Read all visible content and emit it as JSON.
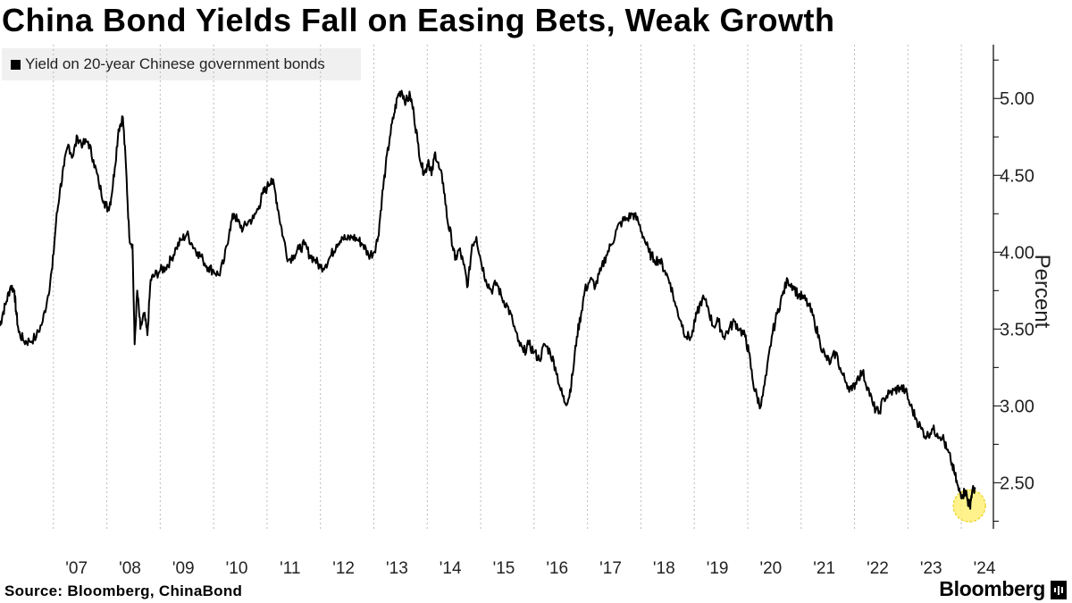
{
  "title": "China Bond Yields Fall on Easing Bets, Weak Growth",
  "legend": {
    "label": "Yield on 20-year Chinese government bonds",
    "color": "#000000"
  },
  "source": "Source: Bloomberg, ChinaBond",
  "brand": "Bloomberg",
  "brand_icon": "bloomberg-bars-icon",
  "highlight_color": "#ffee66",
  "chart_data": {
    "type": "line",
    "title": "China Bond Yields Fall on Easing Bets, Weak Growth",
    "ylabel": "Percent",
    "xlabel": "",
    "ylim": [
      2.2,
      5.35
    ],
    "yticks": [
      2.5,
      3.0,
      3.5,
      4.0,
      4.5,
      5.0
    ],
    "ytick_labels": [
      "2.50",
      "3.00",
      "3.50",
      "4.00",
      "4.50",
      "5.00"
    ],
    "xticks": [
      "'07",
      "'08",
      "'09",
      "'10",
      "'11",
      "'12",
      "'13",
      "'14",
      "'15",
      "'16",
      "'17",
      "'18",
      "'19",
      "'20",
      "'21",
      "'22",
      "'23",
      "'24"
    ],
    "xlim": [
      2006.0,
      2024.6
    ],
    "grid": "vertical dashed at year boundaries",
    "legend_position": "top-left",
    "highlight": {
      "x": 2024.15,
      "y": 2.35,
      "note": "yellow circle marking latest low"
    },
    "series": [
      {
        "name": "Yield on 20-year Chinese government bonds",
        "color": "#000000",
        "points": [
          [
            2006.0,
            3.52
          ],
          [
            2006.05,
            3.6
          ],
          [
            2006.12,
            3.68
          ],
          [
            2006.2,
            3.78
          ],
          [
            2006.27,
            3.75
          ],
          [
            2006.3,
            3.62
          ],
          [
            2006.35,
            3.48
          ],
          [
            2006.45,
            3.42
          ],
          [
            2006.55,
            3.42
          ],
          [
            2006.68,
            3.45
          ],
          [
            2006.8,
            3.55
          ],
          [
            2006.9,
            3.72
          ],
          [
            2006.98,
            3.9
          ],
          [
            2007.05,
            4.2
          ],
          [
            2007.12,
            4.4
          ],
          [
            2007.2,
            4.56
          ],
          [
            2007.28,
            4.7
          ],
          [
            2007.36,
            4.62
          ],
          [
            2007.45,
            4.75
          ],
          [
            2007.55,
            4.7
          ],
          [
            2007.65,
            4.72
          ],
          [
            2007.75,
            4.6
          ],
          [
            2007.85,
            4.45
          ],
          [
            2007.95,
            4.33
          ],
          [
            2008.02,
            4.28
          ],
          [
            2008.08,
            4.35
          ],
          [
            2008.15,
            4.55
          ],
          [
            2008.22,
            4.8
          ],
          [
            2008.3,
            4.88
          ],
          [
            2008.36,
            4.55
          ],
          [
            2008.42,
            4.1
          ],
          [
            2008.48,
            4.05
          ],
          [
            2008.52,
            3.4
          ],
          [
            2008.57,
            3.75
          ],
          [
            2008.63,
            3.5
          ],
          [
            2008.7,
            3.6
          ],
          [
            2008.76,
            3.46
          ],
          [
            2008.82,
            3.82
          ],
          [
            2008.9,
            3.85
          ],
          [
            2009.0,
            3.88
          ],
          [
            2009.1,
            3.9
          ],
          [
            2009.2,
            3.95
          ],
          [
            2009.3,
            4.03
          ],
          [
            2009.4,
            4.08
          ],
          [
            2009.5,
            4.12
          ],
          [
            2009.6,
            4.05
          ],
          [
            2009.7,
            4.0
          ],
          [
            2009.8,
            3.95
          ],
          [
            2009.9,
            3.9
          ],
          [
            2010.0,
            3.88
          ],
          [
            2010.1,
            3.85
          ],
          [
            2010.2,
            3.95
          ],
          [
            2010.3,
            4.15
          ],
          [
            2010.38,
            4.25
          ],
          [
            2010.45,
            4.2
          ],
          [
            2010.55,
            4.15
          ],
          [
            2010.65,
            4.2
          ],
          [
            2010.75,
            4.22
          ],
          [
            2010.85,
            4.3
          ],
          [
            2010.92,
            4.38
          ],
          [
            2011.0,
            4.42
          ],
          [
            2011.08,
            4.48
          ],
          [
            2011.15,
            4.4
          ],
          [
            2011.22,
            4.25
          ],
          [
            2011.3,
            4.1
          ],
          [
            2011.4,
            3.95
          ],
          [
            2011.5,
            3.98
          ],
          [
            2011.6,
            4.02
          ],
          [
            2011.7,
            4.05
          ],
          [
            2011.8,
            3.98
          ],
          [
            2011.9,
            3.95
          ],
          [
            2012.0,
            3.9
          ],
          [
            2012.1,
            3.92
          ],
          [
            2012.2,
            3.98
          ],
          [
            2012.3,
            4.05
          ],
          [
            2012.4,
            4.1
          ],
          [
            2012.5,
            4.08
          ],
          [
            2012.6,
            4.1
          ],
          [
            2012.7,
            4.08
          ],
          [
            2012.8,
            4.05
          ],
          [
            2012.9,
            3.98
          ],
          [
            2013.0,
            4.0
          ],
          [
            2013.08,
            4.1
          ],
          [
            2013.15,
            4.35
          ],
          [
            2013.22,
            4.55
          ],
          [
            2013.3,
            4.75
          ],
          [
            2013.38,
            4.9
          ],
          [
            2013.45,
            5.02
          ],
          [
            2013.52,
            5.05
          ],
          [
            2013.6,
            4.98
          ],
          [
            2013.68,
            5.02
          ],
          [
            2013.75,
            4.9
          ],
          [
            2013.82,
            4.72
          ],
          [
            2013.9,
            4.55
          ],
          [
            2013.96,
            4.52
          ],
          [
            2014.02,
            4.6
          ],
          [
            2014.08,
            4.5
          ],
          [
            2014.15,
            4.65
          ],
          [
            2014.22,
            4.55
          ],
          [
            2014.3,
            4.45
          ],
          [
            2014.38,
            4.2
          ],
          [
            2014.45,
            4.1
          ],
          [
            2014.52,
            3.95
          ],
          [
            2014.6,
            4.02
          ],
          [
            2014.68,
            3.92
          ],
          [
            2014.76,
            3.78
          ],
          [
            2014.84,
            4.05
          ],
          [
            2014.92,
            4.1
          ],
          [
            2015.0,
            3.95
          ],
          [
            2015.1,
            3.82
          ],
          [
            2015.2,
            3.75
          ],
          [
            2015.3,
            3.8
          ],
          [
            2015.4,
            3.7
          ],
          [
            2015.5,
            3.65
          ],
          [
            2015.6,
            3.55
          ],
          [
            2015.7,
            3.42
          ],
          [
            2015.8,
            3.35
          ],
          [
            2015.9,
            3.4
          ],
          [
            2016.0,
            3.35
          ],
          [
            2016.1,
            3.3
          ],
          [
            2016.2,
            3.4
          ],
          [
            2016.3,
            3.35
          ],
          [
            2016.4,
            3.25
          ],
          [
            2016.5,
            3.1
          ],
          [
            2016.58,
            3.02
          ],
          [
            2016.65,
            3.05
          ],
          [
            2016.72,
            3.2
          ],
          [
            2016.8,
            3.45
          ],
          [
            2016.88,
            3.6
          ],
          [
            2016.95,
            3.75
          ],
          [
            2017.05,
            3.82
          ],
          [
            2017.15,
            3.78
          ],
          [
            2017.25,
            3.88
          ],
          [
            2017.35,
            3.98
          ],
          [
            2017.45,
            4.05
          ],
          [
            2017.55,
            4.15
          ],
          [
            2017.65,
            4.2
          ],
          [
            2017.75,
            4.22
          ],
          [
            2017.85,
            4.25
          ],
          [
            2017.95,
            4.2
          ],
          [
            2018.05,
            4.1
          ],
          [
            2018.15,
            4.0
          ],
          [
            2018.25,
            3.95
          ],
          [
            2018.35,
            3.95
          ],
          [
            2018.45,
            3.88
          ],
          [
            2018.55,
            3.8
          ],
          [
            2018.65,
            3.65
          ],
          [
            2018.75,
            3.55
          ],
          [
            2018.85,
            3.45
          ],
          [
            2018.95,
            3.45
          ],
          [
            2019.05,
            3.6
          ],
          [
            2019.15,
            3.7
          ],
          [
            2019.25,
            3.65
          ],
          [
            2019.35,
            3.52
          ],
          [
            2019.45,
            3.55
          ],
          [
            2019.55,
            3.45
          ],
          [
            2019.65,
            3.5
          ],
          [
            2019.75,
            3.55
          ],
          [
            2019.85,
            3.5
          ],
          [
            2019.95,
            3.45
          ],
          [
            2020.02,
            3.35
          ],
          [
            2020.1,
            3.15
          ],
          [
            2020.18,
            3.05
          ],
          [
            2020.25,
            3.0
          ],
          [
            2020.35,
            3.2
          ],
          [
            2020.45,
            3.45
          ],
          [
            2020.55,
            3.6
          ],
          [
            2020.65,
            3.72
          ],
          [
            2020.75,
            3.82
          ],
          [
            2020.85,
            3.78
          ],
          [
            2020.95,
            3.72
          ],
          [
            2021.05,
            3.7
          ],
          [
            2021.15,
            3.65
          ],
          [
            2021.25,
            3.55
          ],
          [
            2021.35,
            3.42
          ],
          [
            2021.45,
            3.32
          ],
          [
            2021.55,
            3.28
          ],
          [
            2021.65,
            3.35
          ],
          [
            2021.75,
            3.22
          ],
          [
            2021.85,
            3.15
          ],
          [
            2021.95,
            3.1
          ],
          [
            2022.05,
            3.18
          ],
          [
            2022.15,
            3.22
          ],
          [
            2022.25,
            3.12
          ],
          [
            2022.35,
            3.0
          ],
          [
            2022.45,
            2.95
          ],
          [
            2022.55,
            3.05
          ],
          [
            2022.65,
            3.08
          ],
          [
            2022.75,
            3.1
          ],
          [
            2022.85,
            3.12
          ],
          [
            2022.95,
            3.1
          ],
          [
            2023.05,
            3.0
          ],
          [
            2023.15,
            2.92
          ],
          [
            2023.25,
            2.85
          ],
          [
            2023.35,
            2.8
          ],
          [
            2023.45,
            2.85
          ],
          [
            2023.55,
            2.82
          ],
          [
            2023.65,
            2.8
          ],
          [
            2023.72,
            2.72
          ],
          [
            2023.8,
            2.65
          ],
          [
            2023.88,
            2.55
          ],
          [
            2023.95,
            2.45
          ],
          [
            2024.02,
            2.42
          ],
          [
            2024.08,
            2.45
          ],
          [
            2024.12,
            2.38
          ],
          [
            2024.16,
            2.35
          ],
          [
            2024.2,
            2.44
          ],
          [
            2024.26,
            2.47
          ]
        ]
      }
    ]
  }
}
